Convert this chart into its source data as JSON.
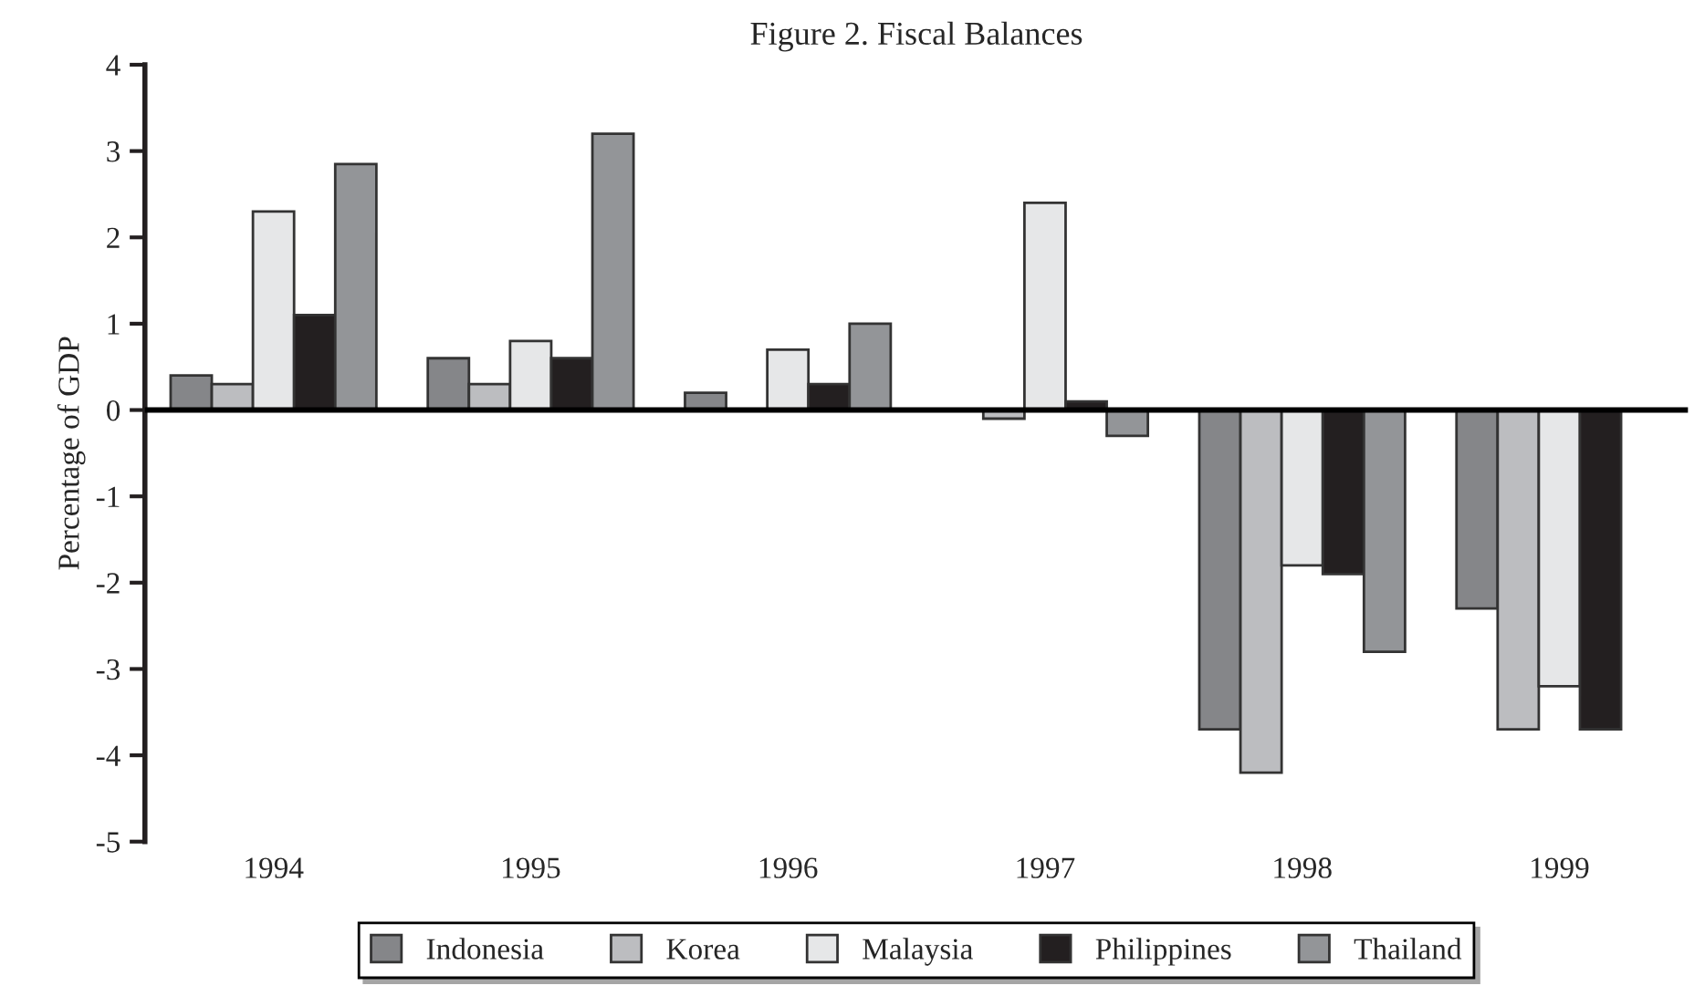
{
  "chart_data": {
    "type": "bar",
    "title": "Figure 2. Fiscal Balances",
    "ylabel": "Percentage of GDP",
    "categories": [
      "1994",
      "1995",
      "1996",
      "1997",
      "1998",
      "1999"
    ],
    "series": [
      {
        "name": "Indonesia",
        "color": "#858689",
        "values": [
          0.4,
          0.6,
          0.2,
          null,
          -3.7,
          -2.3
        ]
      },
      {
        "name": "Korea",
        "color": "#bcbdc0",
        "values": [
          0.3,
          0.3,
          null,
          -0.1,
          -4.2,
          -3.7
        ]
      },
      {
        "name": "Malaysia",
        "color": "#e6e7e8",
        "values": [
          2.3,
          0.8,
          0.7,
          2.4,
          -1.8,
          -3.2
        ]
      },
      {
        "name": "Philippines",
        "color": "#231f20",
        "values": [
          1.1,
          0.6,
          0.3,
          0.1,
          -1.9,
          -3.7
        ]
      },
      {
        "name": "Thailand",
        "color": "#939598",
        "values": [
          2.85,
          3.2,
          1.0,
          -0.3,
          -2.8,
          null
        ]
      }
    ],
    "ylim": [
      -5,
      4
    ],
    "yticks": [
      -5,
      -4,
      -3,
      -2,
      -1,
      0,
      1,
      2,
      3,
      4
    ],
    "ref_lines": [
      {
        "axis": "y",
        "value": 0,
        "color": "#000000"
      }
    ],
    "grid": false,
    "legend": "bottom"
  }
}
